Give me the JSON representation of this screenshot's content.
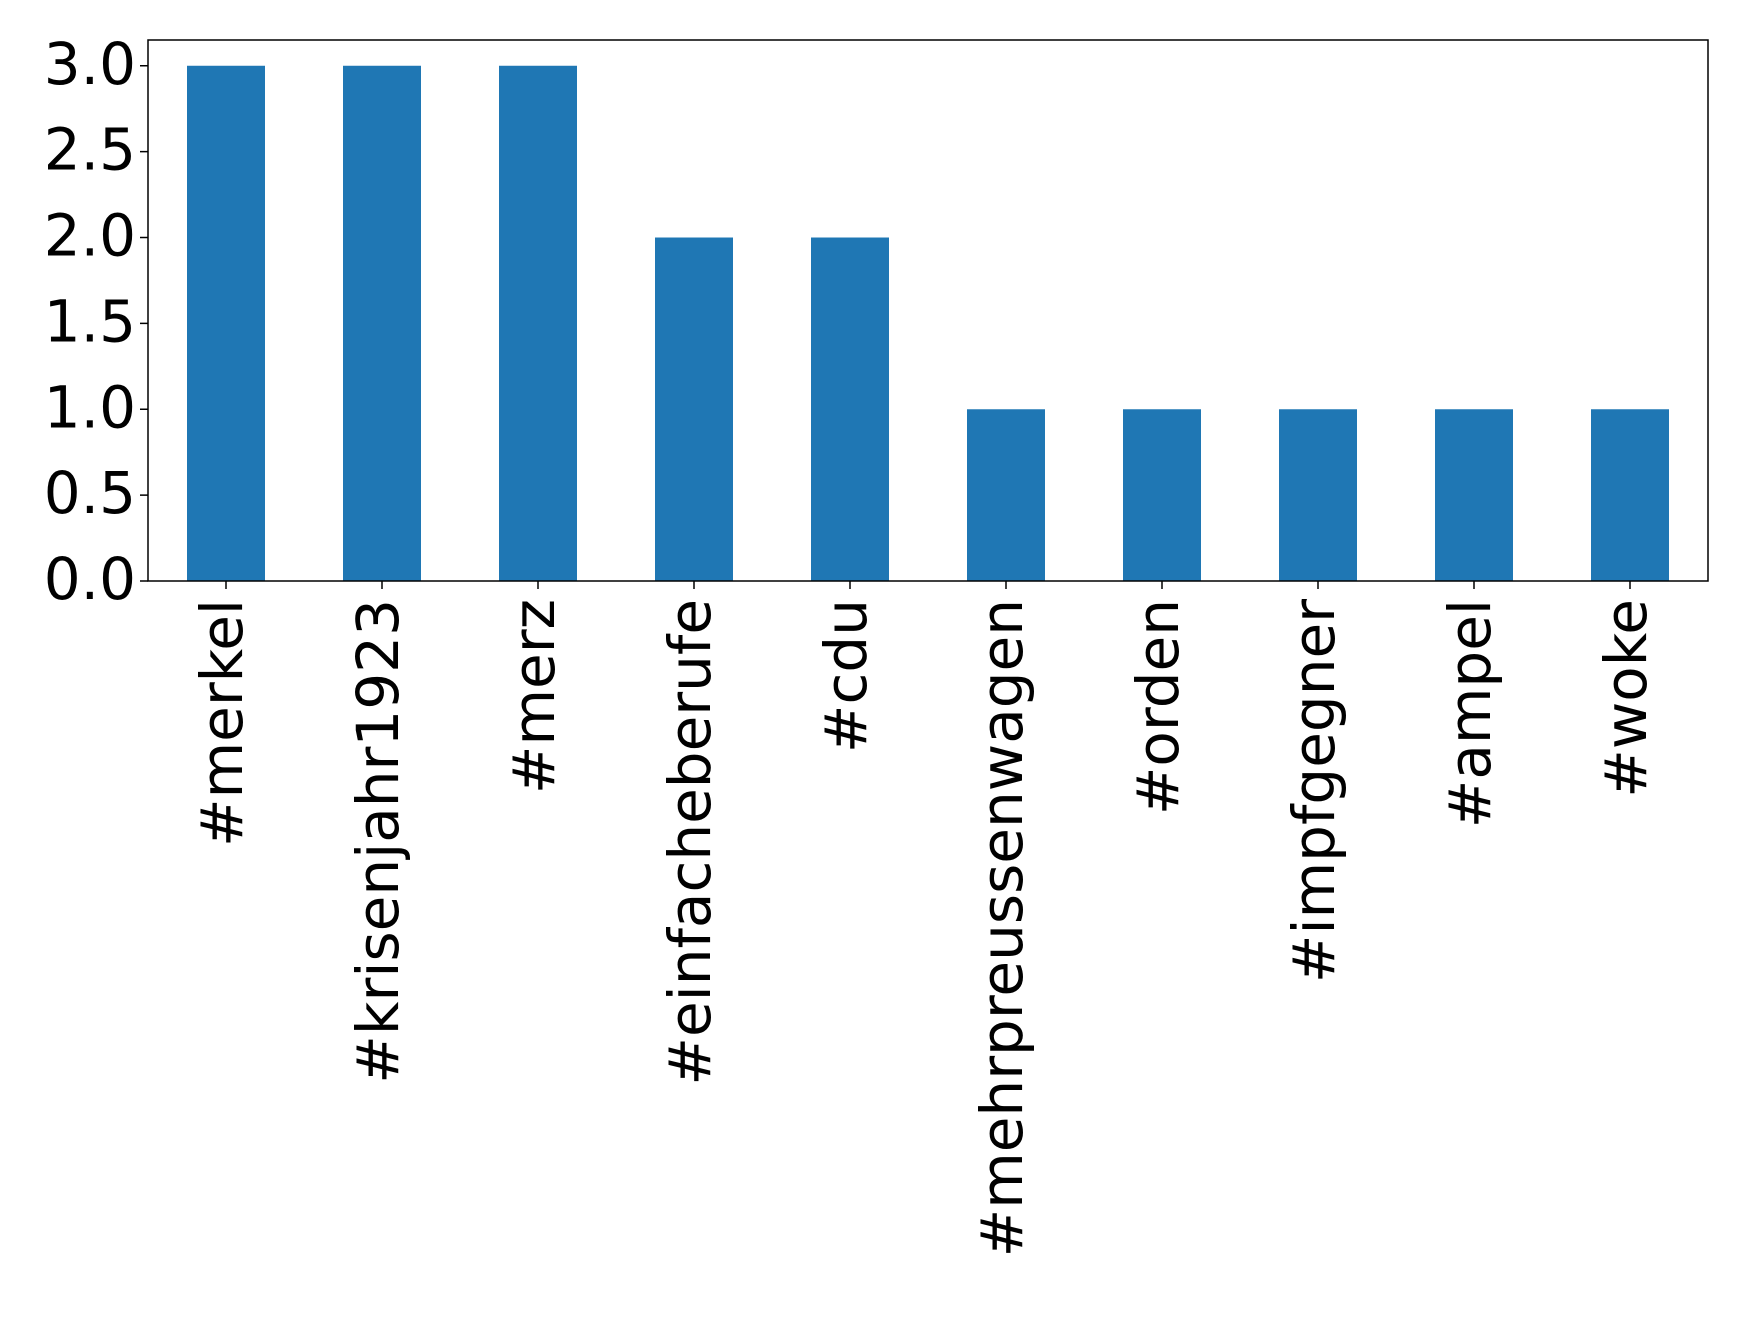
{
  "chart_data": {
    "type": "bar",
    "categories": [
      "#merkel",
      "#krisenjahr1923",
      "#merz",
      "#einfacheberufe",
      "#cdu",
      "#mehrpreussenwagen",
      "#orden",
      "#impfgegner",
      "#ampel",
      "#woke"
    ],
    "values": [
      3,
      3,
      3,
      2,
      2,
      1,
      1,
      1,
      1,
      1
    ],
    "color": "#1f77b4",
    "ylim": [
      0,
      3.15
    ],
    "yticks": [
      {
        "value": 0,
        "label": "0.0"
      },
      {
        "value": 0.5,
        "label": "0.5"
      },
      {
        "value": 1,
        "label": "1.0"
      },
      {
        "value": 1.5,
        "label": "1.5"
      },
      {
        "value": 2,
        "label": "2.0"
      },
      {
        "value": 2.5,
        "label": "2.5"
      },
      {
        "value": 3,
        "label": "3.0"
      }
    ],
    "grid": false
  }
}
